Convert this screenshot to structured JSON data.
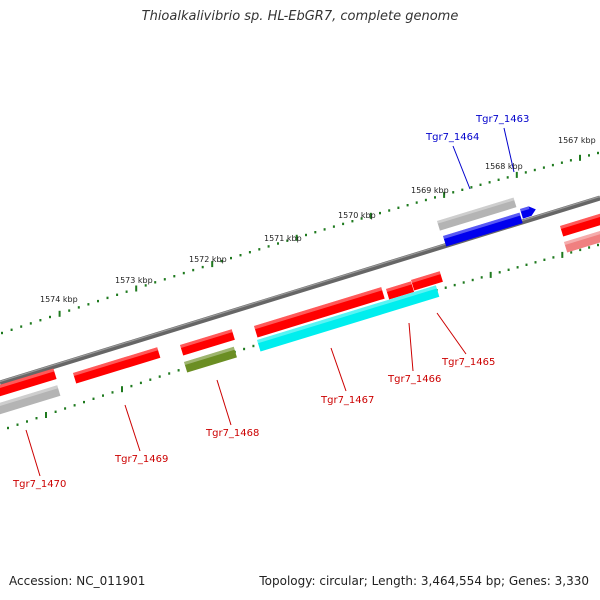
{
  "title": "Thioalkalivibrio sp. HL-EbGR7, complete genome",
  "footer": {
    "accession": "Accession: NC_011901",
    "summary": "Topology: circular; Length: 3,464,554 bp; Genes: 3,330"
  },
  "colors": {
    "backbone": "#666666",
    "gene_red": "#ff0000",
    "gene_blue": "#0000ee",
    "gene_cyan": "#00eeee",
    "gene_olive": "#6b8e23",
    "gene_grey": "#b4b4b4",
    "gene_pink": "#f08080",
    "ruler": "#2e8b57",
    "label_red": "#cc0000",
    "label_blue": "#0000cc"
  },
  "ruler_labels": [
    "1574 kbp",
    "1573 kbp",
    "1572 kbp",
    "1571 kbp",
    "1570 kbp",
    "1569 kbp",
    "1568 kbp",
    "1567 kbp"
  ],
  "gene_labels": [
    {
      "text": "Tgr7_1463",
      "color": "blue"
    },
    {
      "text": "Tgr7_1464",
      "color": "blue"
    },
    {
      "text": "Tgr7_1465",
      "color": "red"
    },
    {
      "text": "Tgr7_1466",
      "color": "red"
    },
    {
      "text": "Tgr7_1467",
      "color": "red"
    },
    {
      "text": "Tgr7_1468",
      "color": "red"
    },
    {
      "text": "Tgr7_1469",
      "color": "red"
    },
    {
      "text": "Tgr7_1470",
      "color": "red"
    }
  ]
}
